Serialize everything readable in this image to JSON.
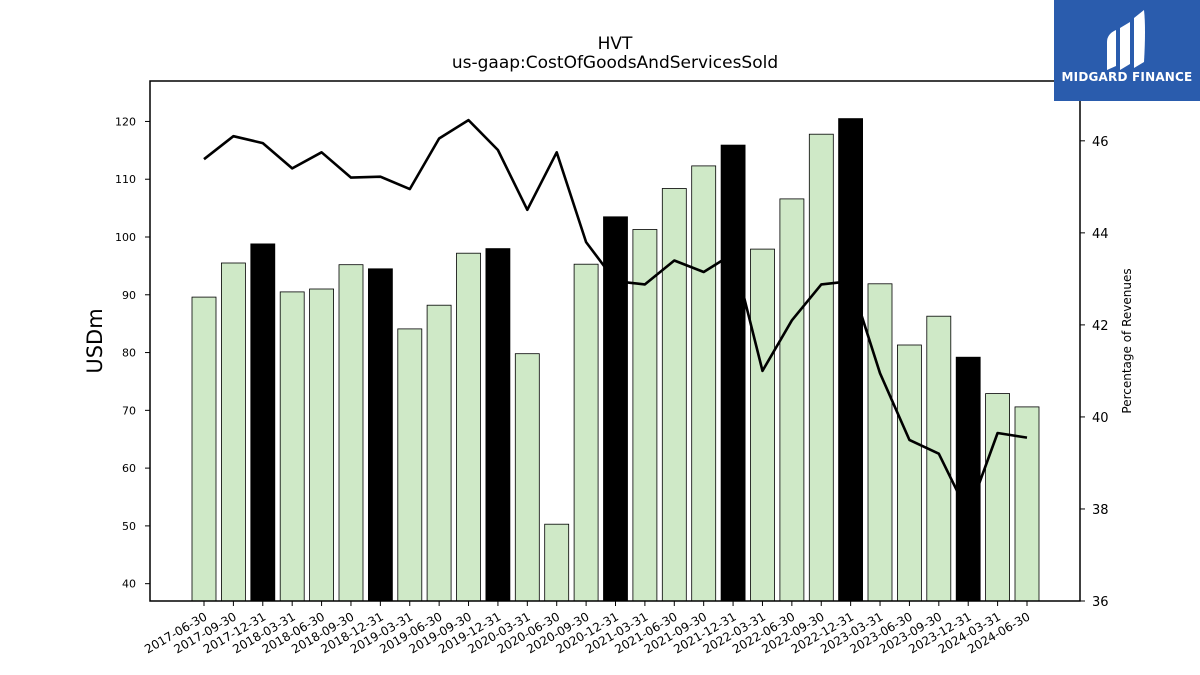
{
  "chart_data": {
    "type": "bar+line",
    "title": "HVT",
    "subtitle": "us-gaap:CostOfGoodsAndServicesSold",
    "ylabel_left": "USDm",
    "ylabel_right": "Percentage of Revenues",
    "ylim_left": [
      37,
      127
    ],
    "ylim_right": [
      36,
      47.3
    ],
    "yticks_left": [
      40,
      50,
      60,
      70,
      80,
      90,
      100,
      110,
      120
    ],
    "yticks_right": [
      36,
      38,
      40,
      42,
      44,
      46
    ],
    "categories": [
      "2017-06-30",
      "2017-09-30",
      "2017-12-31",
      "2018-03-31",
      "2018-06-30",
      "2018-09-30",
      "2018-12-31",
      "2019-03-31",
      "2019-06-30",
      "2019-09-30",
      "2019-12-31",
      "2020-03-31",
      "2020-06-30",
      "2020-09-30",
      "2020-12-31",
      "2021-03-31",
      "2021-06-30",
      "2021-09-30",
      "2021-12-31",
      "2022-03-31",
      "2022-06-30",
      "2022-09-30",
      "2022-12-31",
      "2023-03-31",
      "2023-06-30",
      "2023-09-30",
      "2023-12-31",
      "2024-03-31",
      "2024-06-30"
    ],
    "bars": [
      89.6,
      95.5,
      98.8,
      90.5,
      91.0,
      95.2,
      94.5,
      84.1,
      88.2,
      97.2,
      98.0,
      79.8,
      50.3,
      95.3,
      103.5,
      101.3,
      108.4,
      112.3,
      115.9,
      97.9,
      106.6,
      117.8,
      120.5,
      91.9,
      81.3,
      86.3,
      79.2,
      72.9,
      70.6
    ],
    "bar_highlight": [
      false,
      false,
      true,
      false,
      false,
      false,
      true,
      false,
      false,
      false,
      true,
      false,
      false,
      false,
      true,
      false,
      false,
      false,
      true,
      false,
      false,
      false,
      true,
      false,
      false,
      false,
      true,
      false,
      false
    ],
    "line": [
      45.6,
      46.1,
      45.95,
      45.4,
      45.75,
      45.2,
      45.22,
      44.95,
      46.05,
      46.45,
      45.8,
      44.5,
      45.75,
      43.8,
      42.95,
      42.88,
      43.4,
      43.15,
      43.55,
      41.0,
      42.1,
      42.88,
      42.95,
      40.95,
      39.5,
      39.2,
      37.9,
      39.65,
      39.55
    ],
    "colors": {
      "bar": "#cfe9c7",
      "bar_highlight": "#000000",
      "line": "#000000"
    },
    "grid": false,
    "legend": "none"
  },
  "logo": {
    "text": "MIDGARD FINANCE",
    "background": "#2a5cad"
  }
}
